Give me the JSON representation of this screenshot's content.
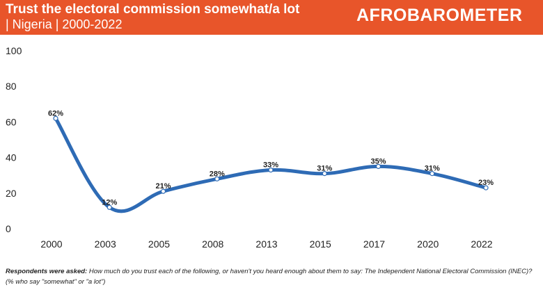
{
  "header": {
    "title_line1": "Trust the electoral commission somewhat/a lot",
    "title_line2": "| Nigeria | 2000-2022",
    "logo_text": "AFROBAROMETER",
    "background_color": "#e8552a"
  },
  "chart_data": {
    "type": "line",
    "x": [
      "2000",
      "2003",
      "2005",
      "2008",
      "2013",
      "2015",
      "2017",
      "2020",
      "2022"
    ],
    "series": [
      {
        "values": [
          62,
          12,
          21,
          28,
          33,
          31,
          35,
          31,
          23
        ],
        "labels": [
          "62%",
          "12%",
          "21%",
          "28%",
          "33%",
          "31%",
          "35%",
          "31%",
          "23%"
        ],
        "color": "#2e6bb5"
      }
    ],
    "yticks": [
      "0",
      "20",
      "40",
      "60",
      "80",
      "100"
    ],
    "ylim": [
      0,
      100
    ],
    "grid": false,
    "legend": "none"
  },
  "footnote": {
    "lead": "Respondents were asked:",
    "text": " How much do you trust each of the following, or haven't you heard enough about them to say: The Independent National Electoral Commission (INEC)? (% who say \"somewhat\" or \"a lot\")"
  }
}
